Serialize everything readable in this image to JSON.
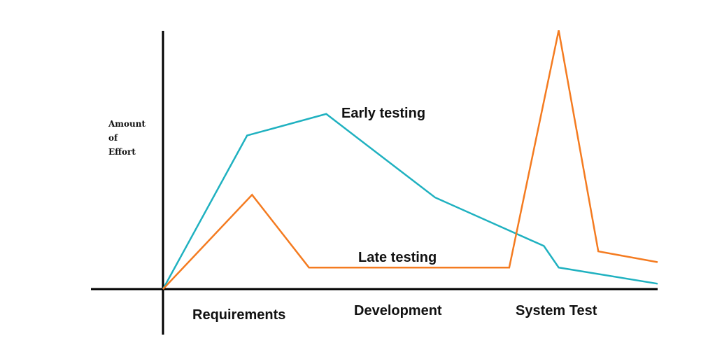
{
  "chart_data": {
    "type": "line",
    "title": "",
    "ylabel_lines": [
      "Amount",
      "of",
      "Effort"
    ],
    "xlabel": "",
    "phases": [
      "Requirements",
      "Development",
      "System Test"
    ],
    "xlim": [
      0,
      100
    ],
    "ylim": [
      0,
      100
    ],
    "grid": false,
    "series": [
      {
        "name": "Early testing",
        "color": "#1fb1c0",
        "x": [
          0,
          17,
          33,
          55,
          77,
          80,
          100
        ],
        "y": [
          0,
          57,
          65,
          34,
          16,
          8,
          2
        ]
      },
      {
        "name": "Late testing",
        "color": "#f47b20",
        "x": [
          0,
          18,
          29.5,
          70,
          80,
          88,
          100
        ],
        "y": [
          0,
          35,
          8,
          8,
          96,
          14,
          10
        ]
      }
    ],
    "annotations": [
      {
        "text": "Early testing",
        "series": "Early testing"
      },
      {
        "text": "Late testing",
        "series": "Late testing"
      }
    ]
  }
}
